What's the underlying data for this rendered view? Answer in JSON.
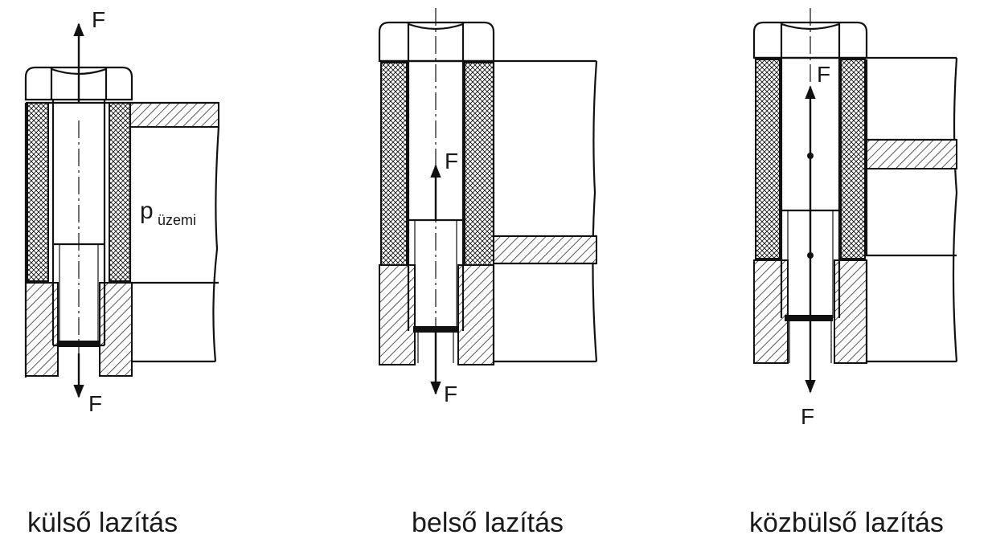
{
  "force_label": "F",
  "pressure_label": {
    "symbol": "p",
    "subscript": "üzemi"
  },
  "captions": [
    "külső lazítás",
    "belső lazítás",
    "közbülső lazítás"
  ],
  "colors": {
    "ink": "#111111",
    "background": "#ffffff"
  }
}
